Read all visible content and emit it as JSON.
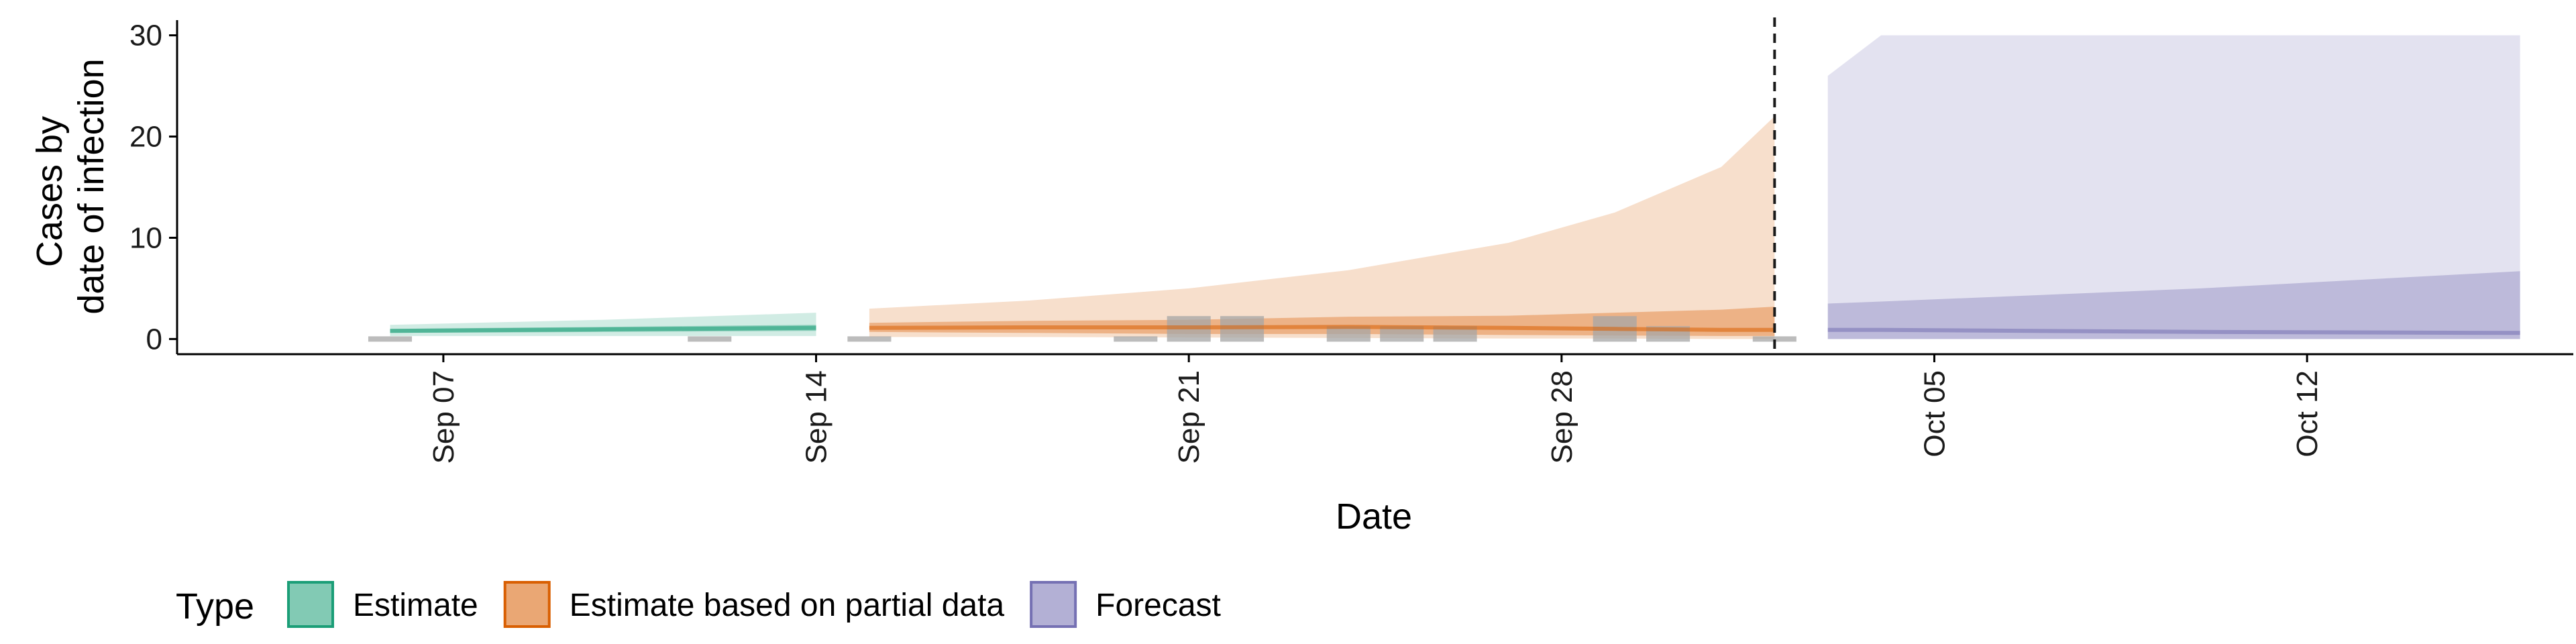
{
  "chart_data": {
    "type": "area",
    "xlabel": "Date",
    "ylabel_lines": [
      "Cases by",
      "date of infection"
    ],
    "ylim": [
      -1.5,
      31.5
    ],
    "yticks": [
      0,
      10,
      20,
      30
    ],
    "x_range": [
      "2020-09-02",
      "2020-10-17"
    ],
    "xticks": [
      {
        "date": "2020-09-07",
        "label": "Sep 07"
      },
      {
        "date": "2020-09-14",
        "label": "Sep 14"
      },
      {
        "date": "2020-09-21",
        "label": "Sep 21"
      },
      {
        "date": "2020-09-28",
        "label": "Sep 28"
      },
      {
        "date": "2020-10-05",
        "label": "Oct 05"
      },
      {
        "date": "2020-10-12",
        "label": "Oct 12"
      }
    ],
    "vline_date": "2020-10-02",
    "legend": {
      "title": "Type",
      "position": "bottom-left",
      "items": [
        {
          "key": "estimate",
          "label": "Estimate"
        },
        {
          "key": "partial",
          "label": "Estimate based on partial data"
        },
        {
          "key": "forecast",
          "label": "Forecast"
        }
      ]
    },
    "colors": {
      "estimate": "#1b9e77",
      "partial": "#d95f02",
      "forecast": "#7570b3",
      "reported": "#a6a6a6"
    },
    "reported_cases": [
      {
        "date": "2020-09-06",
        "value": 0
      },
      {
        "date": "2020-09-12",
        "value": 0
      },
      {
        "date": "2020-09-15",
        "value": 0
      },
      {
        "date": "2020-09-20",
        "value": 0
      },
      {
        "date": "2020-09-21",
        "value": 2
      },
      {
        "date": "2020-09-22",
        "value": 2
      },
      {
        "date": "2020-09-24",
        "value": 1
      },
      {
        "date": "2020-09-25",
        "value": 1
      },
      {
        "date": "2020-09-26",
        "value": 1
      },
      {
        "date": "2020-09-29",
        "value": 2
      },
      {
        "date": "2020-09-30",
        "value": 1
      },
      {
        "date": "2020-10-02",
        "value": 0
      }
    ],
    "series": [
      {
        "key": "estimate",
        "points": [
          {
            "date": "2020-09-06",
            "outer": [
              0.3,
              1.4
            ],
            "inner": [
              0.6,
              1.0
            ],
            "median": 0.8
          },
          {
            "date": "2020-09-10",
            "outer": [
              0.3,
              1.9
            ],
            "inner": [
              0.7,
              1.2
            ],
            "median": 0.95
          },
          {
            "date": "2020-09-14",
            "outer": [
              0.3,
              2.6
            ],
            "inner": [
              0.8,
              1.4
            ],
            "median": 1.1
          }
        ]
      },
      {
        "key": "partial",
        "points": [
          {
            "date": "2020-09-15",
            "outer": [
              0.2,
              3.0
            ],
            "inner": [
              0.7,
              1.6
            ],
            "median": 1.1
          },
          {
            "date": "2020-09-18",
            "outer": [
              0.2,
              3.8
            ],
            "inner": [
              0.6,
              1.8
            ],
            "median": 1.15
          },
          {
            "date": "2020-09-21",
            "outer": [
              0.15,
              5.0
            ],
            "inner": [
              0.5,
              1.9
            ],
            "median": 1.15
          },
          {
            "date": "2020-09-24",
            "outer": [
              0.1,
              6.8
            ],
            "inner": [
              0.5,
              2.2
            ],
            "median": 1.2
          },
          {
            "date": "2020-09-27",
            "outer": [
              0.05,
              9.5
            ],
            "inner": [
              0.4,
              2.3
            ],
            "median": 1.1
          },
          {
            "date": "2020-09-29",
            "outer": [
              0.05,
              12.5
            ],
            "inner": [
              0.35,
              2.6
            ],
            "median": 1.0
          },
          {
            "date": "2020-10-01",
            "outer": [
              0.0,
              17.0
            ],
            "inner": [
              0.3,
              2.9
            ],
            "median": 0.9
          },
          {
            "date": "2020-10-02",
            "outer": [
              0.0,
              22.0
            ],
            "inner": [
              0.3,
              3.2
            ],
            "median": 0.9
          }
        ]
      },
      {
        "key": "forecast",
        "points": [
          {
            "date": "2020-10-03",
            "outer": [
              0.0,
              26.0
            ],
            "inner": [
              0.0,
              3.5
            ],
            "median": 0.9
          },
          {
            "date": "2020-10-04",
            "outer": [
              0.0,
              30.0
            ],
            "inner": [
              0.0,
              3.7
            ],
            "median": 0.9
          },
          {
            "date": "2020-10-10",
            "outer": [
              0.0,
              30.0
            ],
            "inner": [
              0.0,
              5.0
            ],
            "median": 0.7
          },
          {
            "date": "2020-10-16",
            "outer": [
              0.0,
              30.0
            ],
            "inner": [
              0.0,
              6.7
            ],
            "median": 0.6
          }
        ]
      }
    ]
  }
}
